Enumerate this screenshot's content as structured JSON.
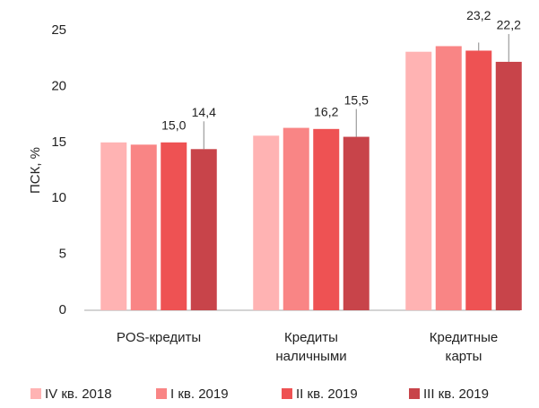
{
  "chart_data": {
    "type": "bar",
    "y_label": "ПСК, %",
    "categories": [
      "POS-кредиты",
      "Кредиты наличными",
      "Кредитные карты"
    ],
    "series": [
      {
        "name": "IV кв. 2018",
        "color": "#ffb3b3",
        "values": [
          15.0,
          15.6,
          23.1
        ]
      },
      {
        "name": "I кв. 2019",
        "color": "#f98585",
        "values": [
          14.8,
          16.3,
          23.6
        ]
      },
      {
        "name": "II кв. 2019",
        "color": "#ee5253",
        "values": [
          15.0,
          16.2,
          23.2
        ],
        "value_labels": [
          "15,0",
          "16,2",
          "23,2"
        ]
      },
      {
        "name": "III кв. 2019",
        "color": "#c8444a",
        "values": [
          14.4,
          15.5,
          22.2
        ],
        "value_labels": [
          "14,4",
          "15,5",
          "22,2"
        ]
      }
    ],
    "ylim": [
      0,
      25
    ],
    "yticks": [
      0,
      5,
      10,
      15,
      20,
      25
    ],
    "grid": false
  }
}
